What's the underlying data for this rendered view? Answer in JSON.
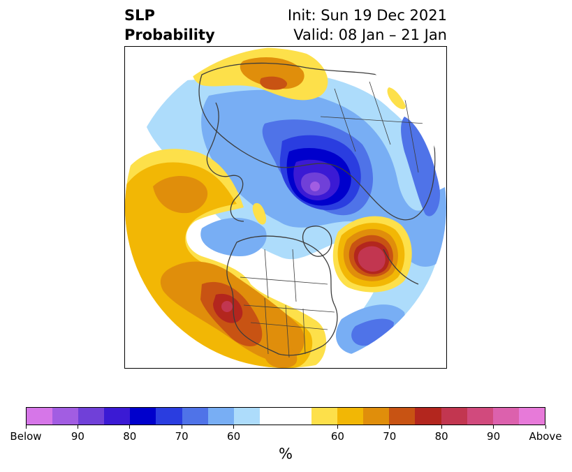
{
  "title": {
    "left_line1": "SLP",
    "left_line2": "Probability",
    "right_line1": "Init: Sun 19 Dec 2021",
    "right_line2": "Valid: 08 Jan – 21 Jan"
  },
  "colorbar": {
    "colors": [
      "#d676e8",
      "#a25de2",
      "#7040d8",
      "#3b1ad4",
      "#0000cc",
      "#2a3de0",
      "#4f73e8",
      "#78aef4",
      "#addcfb",
      "#ffffff",
      "#ffffff",
      "#fde04a",
      "#f2b705",
      "#e08e0b",
      "#c85313",
      "#b3261e",
      "#c23650",
      "#d14a7d",
      "#dc61ad",
      "#e77ad9"
    ],
    "labels": [
      "Below",
      "90",
      "80",
      "70",
      "60",
      "60",
      "70",
      "80",
      "90",
      "Above"
    ],
    "unit": "%"
  },
  "map": {
    "projection": "north-polar stereographic",
    "field": "SLP probability"
  }
}
